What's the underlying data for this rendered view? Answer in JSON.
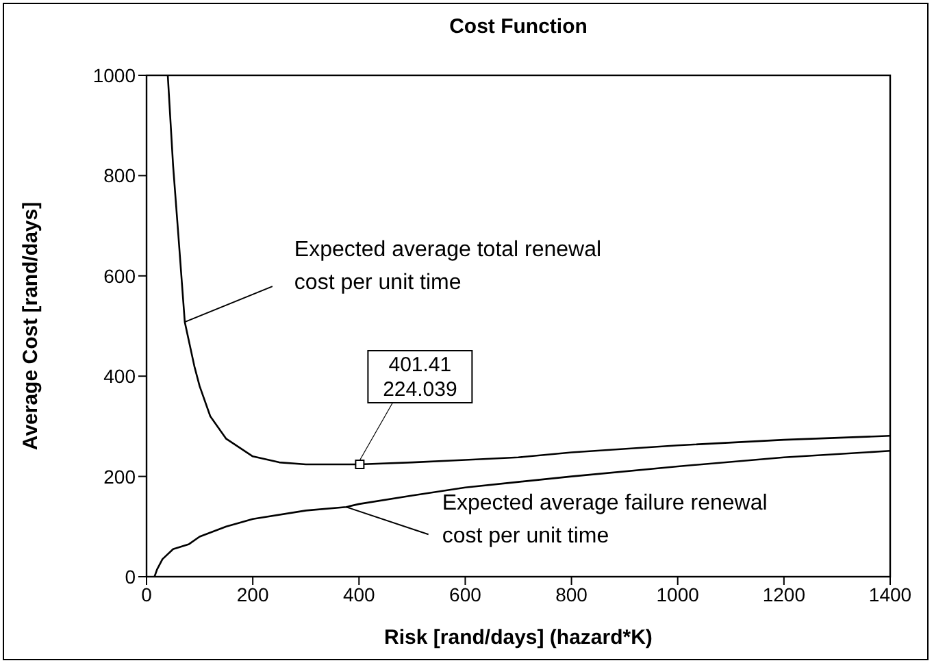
{
  "chart_data": {
    "type": "line",
    "title": "Cost Function",
    "xlabel": "Risk [rand/days] (hazard*K)",
    "ylabel": "Average Cost [rand/days]",
    "xlim": [
      0,
      1400
    ],
    "xticks": [
      0,
      200,
      400,
      600,
      800,
      1000,
      1200,
      1400
    ],
    "ylim": [
      0,
      1000
    ],
    "yticks": [
      0,
      200,
      400,
      600,
      800,
      1000
    ],
    "grid": false,
    "marker": "none",
    "line_style": "solid",
    "series": [
      {
        "color": "#000000",
        "x": [
          40,
          50,
          60,
          72,
          90,
          100,
          120,
          150,
          200,
          250,
          300,
          400,
          500,
          600,
          700,
          800,
          1000,
          1200,
          1400
        ],
        "values": [
          1000,
          820,
          680,
          508,
          420,
          380,
          320,
          275,
          240,
          228,
          224,
          224,
          228,
          233,
          238,
          248,
          262,
          273,
          281
        ]
      },
      {
        "color": "#000000",
        "x": [
          15,
          20,
          30,
          50,
          80,
          100,
          150,
          200,
          300,
          376,
          400,
          500,
          600,
          700,
          800,
          1000,
          1200,
          1400
        ],
        "values": [
          0,
          15,
          35,
          55,
          65,
          80,
          100,
          115,
          132,
          139,
          145,
          162,
          178,
          189,
          200,
          220,
          238,
          251
        ]
      },
      {
        "type": "scatter",
        "marker": "square",
        "color": "#000000",
        "x": [
          401.41
        ],
        "values": [
          224.039
        ],
        "value_labels": [
          "401.41\n224.039"
        ]
      }
    ],
    "annotations": [
      {
        "text": "Expected average total renewal\ncost per unit time",
        "x": 72,
        "y": 508
      },
      {
        "text": "Expected average failure renewal\ncost per unit time",
        "x": 376,
        "y": 139
      }
    ]
  }
}
